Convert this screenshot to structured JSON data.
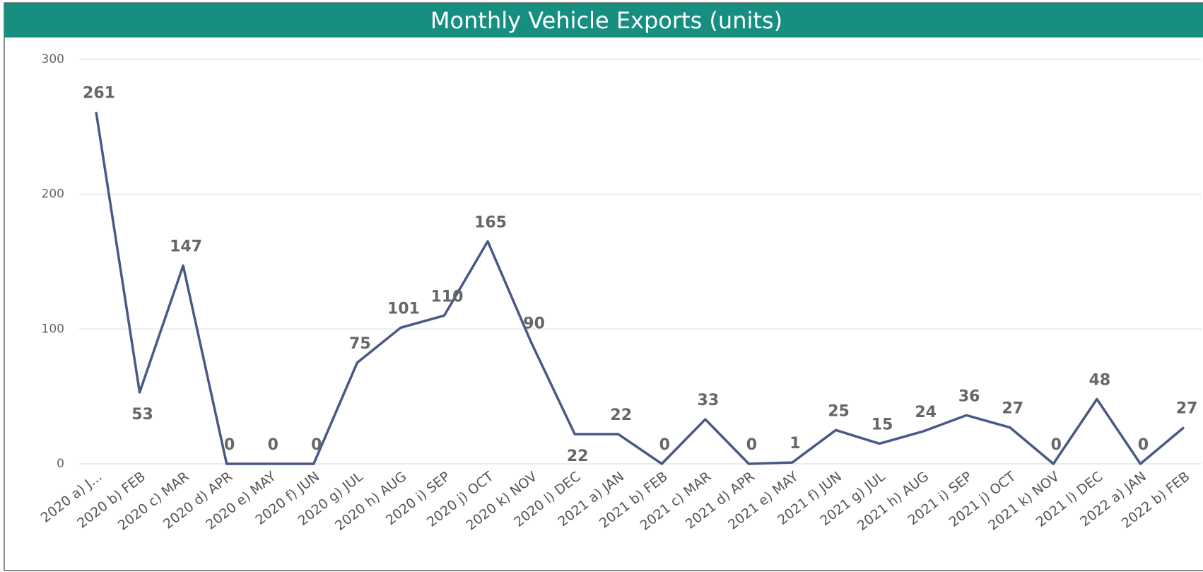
{
  "chart_data": {
    "type": "line",
    "title": "Monthly Vehicle Exports (units)",
    "categories": [
      "2020 a) J...",
      "2020 b) FEB",
      "2020 c) MAR",
      "2020 d) APR",
      "2020 e) MAY",
      "2020 f) JUN",
      "2020 g) JUL",
      "2020 h) AUG",
      "2020 i) SEP",
      "2020 j) OCT",
      "2020 k) NOV",
      "2020 l) DEC",
      "2021 a) JAN",
      "2021 b) FEB",
      "2021 c) MAR",
      "2021 d) APR",
      "2021 e) MAY",
      "2021 f) JUN",
      "2021 g) JUL",
      "2021 h) AUG",
      "2021 i) SEP",
      "2021 j) OCT",
      "2021 k) NOV",
      "2021 l) DEC",
      "2022 a) JAN",
      "2022 b) FEB"
    ],
    "series": [
      {
        "name": "Exports",
        "color": "#4a5888",
        "values": [
          261,
          53,
          147,
          0,
          0,
          0,
          75,
          101,
          110,
          165,
          90,
          22,
          22,
          0,
          33,
          0,
          1,
          25,
          15,
          24,
          36,
          27,
          0,
          48,
          0,
          27
        ]
      }
    ],
    "ylim": [
      0,
      300
    ],
    "yticks": [
      0,
      100,
      200,
      300
    ],
    "grid": true
  }
}
